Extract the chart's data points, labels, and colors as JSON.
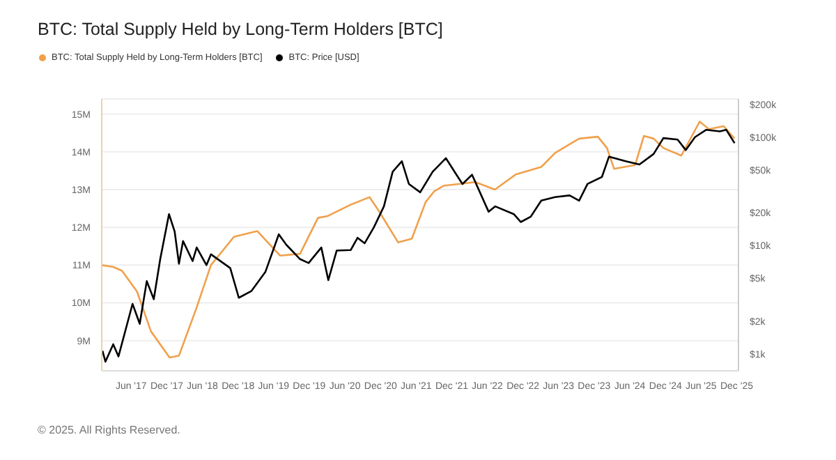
{
  "chart_data": {
    "type": "line",
    "title": "BTC: Total Supply Held by Long-Term Holders [BTC]",
    "annotations": [
      "© 2025. All Rights Reserved."
    ],
    "legend": "top left",
    "grid": "y",
    "marker": "none",
    "line_style": "solid",
    "log": "y2",
    "xlim": [
      "2017-01-01",
      "2025-12-10"
    ],
    "xticks": [
      {
        "value": "2017-06-01",
        "label": "Jun '17"
      },
      {
        "value": "2017-12-01",
        "label": "Dec '17"
      },
      {
        "value": "2018-06-01",
        "label": "Jun '18"
      },
      {
        "value": "2018-12-01",
        "label": "Dec '18"
      },
      {
        "value": "2019-06-01",
        "label": "Jun '19"
      },
      {
        "value": "2019-12-01",
        "label": "Dec '19"
      },
      {
        "value": "2020-06-01",
        "label": "Jun '20"
      },
      {
        "value": "2020-12-01",
        "label": "Dec '20"
      },
      {
        "value": "2021-06-01",
        "label": "Jun '21"
      },
      {
        "value": "2021-12-01",
        "label": "Dec '21"
      },
      {
        "value": "2022-06-01",
        "label": "Jun '22"
      },
      {
        "value": "2022-12-01",
        "label": "Dec '22"
      },
      {
        "value": "2023-06-01",
        "label": "Jun '23"
      },
      {
        "value": "2023-12-01",
        "label": "Dec '23"
      },
      {
        "value": "2024-06-01",
        "label": "Jun '24"
      },
      {
        "value": "2024-12-01",
        "label": "Dec '24"
      },
      {
        "value": "2025-06-01",
        "label": "Jun '25"
      },
      {
        "value": "2025-12-01",
        "label": "Dec '25"
      }
    ],
    "ylim": [
      8.2,
      15.4
    ],
    "yticks": [
      {
        "value": 9,
        "label": "9M"
      },
      {
        "value": 10,
        "label": "10M"
      },
      {
        "value": 11,
        "label": "11M"
      },
      {
        "value": 12,
        "label": "12M"
      },
      {
        "value": 13,
        "label": "13M"
      },
      {
        "value": 14,
        "label": "14M"
      },
      {
        "value": 15,
        "label": "15M"
      }
    ],
    "y2lim": [
      700,
      225000
    ],
    "y2ticks": [
      {
        "value": 1000,
        "label": "$1k"
      },
      {
        "value": 2000,
        "label": "$2k"
      },
      {
        "value": 5000,
        "label": "$5k"
      },
      {
        "value": 10000,
        "label": "$10k"
      },
      {
        "value": 20000,
        "label": "$20k"
      },
      {
        "value": 50000,
        "label": "$50k"
      },
      {
        "value": 100000,
        "label": "$100k"
      },
      {
        "value": 200000,
        "label": "$200k"
      }
    ],
    "series": [
      {
        "name": "BTC: Total Supply Held by Long-Term Holders [BTC]",
        "color": "#f0a04b",
        "axis": "y",
        "x": [
          "2017-01-01",
          "2017-03-01",
          "2017-04-15",
          "2017-07-01",
          "2017-09-10",
          "2017-12-15",
          "2018-02-01",
          "2018-05-01",
          "2018-07-15",
          "2018-11-10",
          "2019-03-10",
          "2019-07-05",
          "2019-10-15",
          "2020-01-15",
          "2020-03-05",
          "2020-07-01",
          "2020-10-05",
          "2020-11-20",
          "2021-03-01",
          "2021-05-10",
          "2021-07-20",
          "2021-09-01",
          "2021-10-20",
          "2022-04-01",
          "2022-07-10",
          "2022-10-25",
          "2023-03-05",
          "2023-05-15",
          "2023-09-15",
          "2023-12-20",
          "2024-02-05",
          "2024-03-12",
          "2024-06-28",
          "2024-08-12",
          "2024-10-01",
          "2024-11-20",
          "2025-02-20",
          "2025-05-25",
          "2025-07-12",
          "2025-09-25",
          "2025-11-20"
        ],
        "values": [
          11.0,
          10.95,
          10.85,
          10.3,
          9.25,
          8.55,
          8.6,
          9.85,
          11.0,
          11.75,
          11.9,
          11.25,
          11.3,
          12.25,
          12.3,
          12.6,
          12.8,
          12.45,
          11.6,
          11.7,
          12.67,
          12.95,
          13.1,
          13.2,
          13.0,
          13.4,
          13.6,
          13.97,
          14.35,
          14.4,
          14.1,
          13.55,
          13.65,
          14.42,
          14.35,
          14.1,
          13.9,
          14.8,
          14.6,
          14.68,
          14.35
        ]
      },
      {
        "name": "BTC: Price [USD]",
        "color": "#000000",
        "axis": "y2",
        "x": [
          "2017-01-05",
          "2017-01-20",
          "2017-03-01",
          "2017-03-28",
          "2017-06-08",
          "2017-07-15",
          "2017-08-20",
          "2017-09-25",
          "2017-10-28",
          "2017-12-12",
          "2018-01-10",
          "2018-02-01",
          "2018-02-22",
          "2018-04-12",
          "2018-05-03",
          "2018-06-22",
          "2018-07-15",
          "2018-10-22",
          "2018-12-05",
          "2019-02-07",
          "2019-04-20",
          "2019-06-28",
          "2019-08-05",
          "2019-10-15",
          "2019-11-28",
          "2020-02-01",
          "2020-03-08",
          "2020-04-20",
          "2020-07-01",
          "2020-08-05",
          "2020-09-10",
          "2020-10-28",
          "2020-12-18",
          "2021-02-01",
          "2021-03-20",
          "2021-04-25",
          "2021-06-22",
          "2021-08-25",
          "2021-11-01",
          "2022-01-01",
          "2022-01-25",
          "2022-03-15",
          "2022-06-08",
          "2022-07-12",
          "2022-10-15",
          "2022-11-20",
          "2023-01-10",
          "2023-03-05",
          "2023-05-15",
          "2023-07-28",
          "2023-09-15",
          "2023-10-28",
          "2024-01-10",
          "2024-02-15",
          "2024-05-10",
          "2024-07-20",
          "2024-10-01",
          "2024-11-20",
          "2025-02-01",
          "2025-03-15",
          "2025-05-01",
          "2025-06-28",
          "2025-09-05",
          "2025-10-08",
          "2025-11-20"
        ],
        "values": [
          1070,
          850,
          1230,
          950,
          2900,
          1900,
          4700,
          3200,
          7500,
          19500,
          13500,
          6800,
          11000,
          7200,
          9600,
          6600,
          8300,
          6200,
          3300,
          3800,
          5700,
          12700,
          10200,
          7500,
          6900,
          9600,
          4800,
          9000,
          9100,
          11800,
          10500,
          14800,
          23000,
          48000,
          60000,
          37000,
          31000,
          48000,
          64000,
          43000,
          37000,
          45000,
          20500,
          23000,
          19500,
          16500,
          18500,
          26000,
          28000,
          29000,
          26000,
          37000,
          43000,
          66000,
          60000,
          56000,
          70000,
          98000,
          95000,
          76000,
          100000,
          117000,
          113000,
          117000,
          88000
        ]
      }
    ]
  }
}
